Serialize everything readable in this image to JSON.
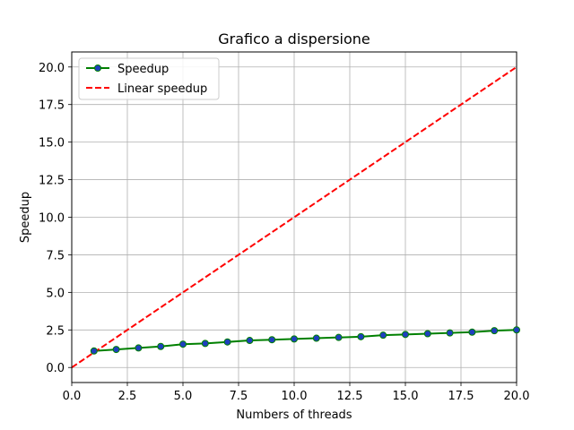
{
  "chart_data": {
    "type": "line",
    "title": "Grafico a dispersione",
    "xlabel": "Numbers of threads",
    "ylabel": "Speedup",
    "xlim": [
      0,
      20
    ],
    "ylim": [
      -1,
      21
    ],
    "xticks": [
      0,
      2.5,
      5,
      7.5,
      10,
      12.5,
      15,
      17.5,
      20
    ],
    "xtick_labels": [
      "0.0",
      "2.5",
      "5.0",
      "7.5",
      "10.0",
      "12.5",
      "15.0",
      "17.5",
      "20.0"
    ],
    "yticks": [
      0,
      2.5,
      5,
      7.5,
      10,
      12.5,
      15,
      17.5,
      20
    ],
    "ytick_labels": [
      "0.0",
      "2.5",
      "5.0",
      "7.5",
      "10.0",
      "12.5",
      "15.0",
      "17.5",
      "20.0"
    ],
    "grid": true,
    "legend_position": "top-left",
    "series": [
      {
        "name": "Speedup",
        "style": "solid-with-markers",
        "line_color": "#008000",
        "marker_color": "#1f3fbf",
        "x": [
          1,
          2,
          3,
          4,
          5,
          6,
          7,
          8,
          9,
          10,
          11,
          12,
          13,
          14,
          15,
          16,
          17,
          18,
          19,
          20
        ],
        "y": [
          1.1,
          1.2,
          1.3,
          1.4,
          1.55,
          1.6,
          1.7,
          1.8,
          1.85,
          1.9,
          1.95,
          2.0,
          2.05,
          2.15,
          2.2,
          2.25,
          2.3,
          2.35,
          2.45,
          2.5
        ]
      },
      {
        "name": "Linear speedup",
        "style": "dashed",
        "line_color": "#ff0000",
        "x": [
          0,
          20
        ],
        "y": [
          0,
          20
        ]
      }
    ]
  }
}
